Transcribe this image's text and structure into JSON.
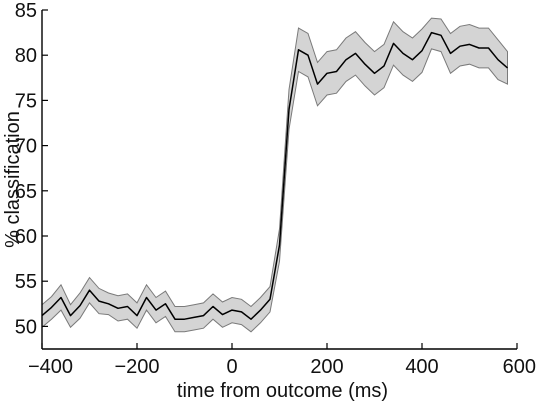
{
  "chart_data": {
    "type": "line",
    "title": "",
    "xlabel": "time from outcome (ms)",
    "ylabel": "% classification",
    "xlim": [
      -400,
      600
    ],
    "ylim": [
      47.5,
      85
    ],
    "x_ticks": [
      -400,
      -200,
      0,
      200,
      400,
      600
    ],
    "y_ticks": [
      50,
      55,
      60,
      65,
      70,
      75,
      80,
      85
    ],
    "x_tick_labels": [
      "−400",
      "−200",
      "0",
      "200",
      "400",
      "600"
    ],
    "y_tick_labels": [
      "50",
      "55",
      "60",
      "65",
      "70",
      "75",
      "80",
      "85"
    ],
    "grid": false,
    "legend": "none",
    "colors": {
      "mean": "#000000",
      "band_fill": "#d4d4d4",
      "band_edge": "#7a7a7a"
    },
    "x": [
      -400,
      -380,
      -360,
      -340,
      -320,
      -300,
      -280,
      -260,
      -240,
      -220,
      -200,
      -180,
      -160,
      -140,
      -120,
      -100,
      -80,
      -60,
      -40,
      -20,
      0,
      20,
      40,
      60,
      80,
      100,
      120,
      140,
      160,
      180,
      200,
      220,
      240,
      260,
      280,
      300,
      320,
      340,
      360,
      380,
      400,
      420,
      440,
      460,
      480,
      500,
      520,
      540,
      560,
      580
    ],
    "series": [
      {
        "values": [
          51.2,
          52.1,
          53.2,
          51.2,
          52.3,
          54.0,
          52.8,
          52.5,
          52.0,
          52.2,
          51.2,
          53.2,
          51.8,
          52.5,
          50.8,
          50.8,
          51.0,
          51.2,
          52.2,
          51.3,
          51.8,
          51.6,
          50.8,
          51.8,
          53.0,
          59.0,
          74.0,
          80.6,
          80.0,
          76.8,
          78.0,
          78.2,
          79.5,
          80.2,
          79.0,
          78.0,
          78.8,
          81.3,
          80.2,
          79.5,
          80.5,
          82.5,
          82.2,
          80.2,
          81.0,
          81.2,
          80.8,
          80.8,
          79.5,
          78.6
        ],
        "upper": [
          52.4,
          53.3,
          54.6,
          52.4,
          53.7,
          55.4,
          54.2,
          53.7,
          53.4,
          53.6,
          52.6,
          54.6,
          53.2,
          53.9,
          52.2,
          52.2,
          52.4,
          52.6,
          53.6,
          52.7,
          53.2,
          53.0,
          52.2,
          53.2,
          54.4,
          60.8,
          76.2,
          83.0,
          82.4,
          79.2,
          80.4,
          80.6,
          81.9,
          82.6,
          81.4,
          80.4,
          81.2,
          83.7,
          82.6,
          81.9,
          82.9,
          84.1,
          84.0,
          82.4,
          83.2,
          83.4,
          83.0,
          83.0,
          81.7,
          80.4
        ]
      }
    ],
    "band_lower": [
      49.9,
      50.8,
      51.8,
      49.9,
      50.9,
      52.6,
      51.4,
      51.3,
      50.6,
      50.8,
      49.8,
      51.8,
      50.4,
      51.1,
      49.4,
      49.4,
      49.6,
      49.8,
      50.8,
      49.9,
      50.4,
      50.2,
      49.4,
      50.4,
      51.6,
      57.2,
      71.8,
      78.2,
      77.6,
      74.4,
      75.6,
      75.8,
      77.1,
      77.8,
      76.6,
      75.6,
      76.4,
      78.9,
      77.8,
      77.1,
      78.1,
      80.7,
      80.4,
      78.0,
      78.8,
      79.0,
      78.6,
      78.6,
      77.3,
      76.8
    ]
  }
}
